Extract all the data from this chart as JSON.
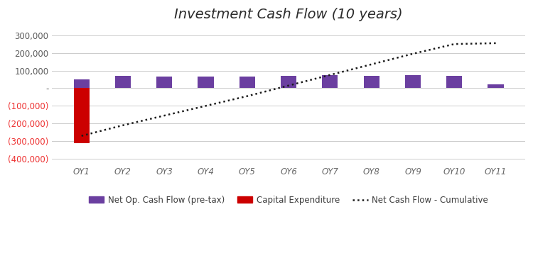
{
  "title": "Investment Cash Flow (10 years)",
  "categories": [
    "OY1",
    "OY2",
    "OY3",
    "OY4",
    "OY5",
    "OY6",
    "OY7",
    "OY8",
    "OY9",
    "OY10",
    "OY11"
  ],
  "net_op_cash_flow": [
    50000,
    68000,
    65000,
    67000,
    67000,
    70000,
    72000,
    68000,
    72000,
    71000,
    20000
  ],
  "capital_expenditure": [
    -310000,
    0,
    0,
    0,
    0,
    0,
    0,
    0,
    0,
    0,
    0
  ],
  "net_cash_flow_cumulative": [
    -270000,
    -210000,
    -155000,
    -100000,
    -45000,
    15000,
    75000,
    135000,
    195000,
    250000,
    255000
  ],
  "bar_color_purple": "#6B3FA0",
  "bar_color_red": "#CC0000",
  "line_color": "#1a1a1a",
  "positive_tick_color": "#5c5c5c",
  "negative_tick_color": "#EE3333",
  "background_color": "#ffffff",
  "grid_color": "#cccccc",
  "ylim": [
    -430000,
    350000
  ],
  "yticks": [
    300000,
    200000,
    100000,
    0,
    -100000,
    -200000,
    -300000,
    -400000
  ],
  "legend_labels": [
    "Net Op. Cash Flow (pre-tax)",
    "Capital Expenditure",
    "Net Cash Flow - Cumulative"
  ],
  "title_fontsize": 14,
  "tick_fontsize": 8.5,
  "legend_fontsize": 8.5,
  "bar_width": 0.38
}
